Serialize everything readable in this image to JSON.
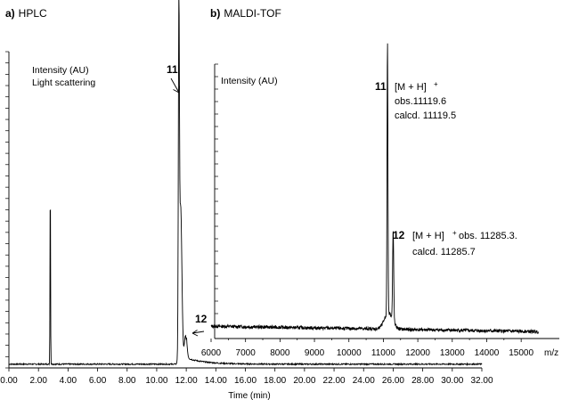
{
  "panels": {
    "a_label": "a)",
    "a_title": "HPLC",
    "b_label": "b)",
    "b_title": "MALDI-TOF"
  },
  "chart_data": [
    {
      "type": "line",
      "panel": "a",
      "ylabel_lines": [
        "Intensity (AU)",
        "Light scattering"
      ],
      "xlabel": "Time (min)",
      "xlim": [
        0,
        32
      ],
      "x_ticks": [
        0,
        2,
        4,
        6,
        8,
        10,
        12,
        14,
        16,
        18,
        20,
        22,
        24,
        26,
        28,
        30,
        32
      ],
      "x_tick_labels": [
        "0.00",
        "2.00",
        "4.00",
        "6.00",
        "8.00",
        "10.00",
        "12.00",
        "14.00",
        "16.00",
        "18.00",
        "20.00",
        "22.00",
        "24.00",
        "26.00",
        "28.00",
        "30.00",
        "32.00"
      ],
      "y_axis_numeric_labels": false,
      "ylim": [
        0,
        1
      ],
      "peaks": [
        {
          "x": 2.8,
          "y": 0.6
        },
        {
          "x": 11.5,
          "y": 1.0
        },
        {
          "x": 11.62,
          "y": 0.5
        },
        {
          "x": 11.95,
          "y": 0.09
        }
      ],
      "annotations": [
        {
          "label": "11",
          "x": 11.5,
          "y": 1.0
        },
        {
          "label": "12",
          "x": 11.95,
          "y": 0.09
        }
      ]
    },
    {
      "type": "line",
      "panel": "b",
      "ylabel": "Intensity (AU)",
      "xlabel": "m/z",
      "xlim": [
        6000,
        15500
      ],
      "x_ticks": [
        6000,
        7000,
        8000,
        9000,
        10000,
        11000,
        12000,
        13000,
        14000,
        15000
      ],
      "x_tick_labels": [
        "6000",
        "7000",
        "8000",
        "9000",
        "10000",
        "11000",
        "12000",
        "13000",
        "14000",
        "15000"
      ],
      "y_axis_numeric_labels": false,
      "ylim": [
        0,
        1
      ],
      "peaks": [
        {
          "x": 11120,
          "y": 1.0
        },
        {
          "x": 11285,
          "y": 0.33
        }
      ],
      "annotations": [
        {
          "label": "11",
          "ion": "[M + H]",
          "charge": "+",
          "lines": [
            "obs.11119.6",
            "calcd. 11119.5"
          ]
        },
        {
          "label": "12",
          "ion": "[M + H]",
          "charge": "+",
          "obs": "obs. 11285.3.",
          "calcd": "calcd. 11285.7"
        }
      ]
    }
  ]
}
